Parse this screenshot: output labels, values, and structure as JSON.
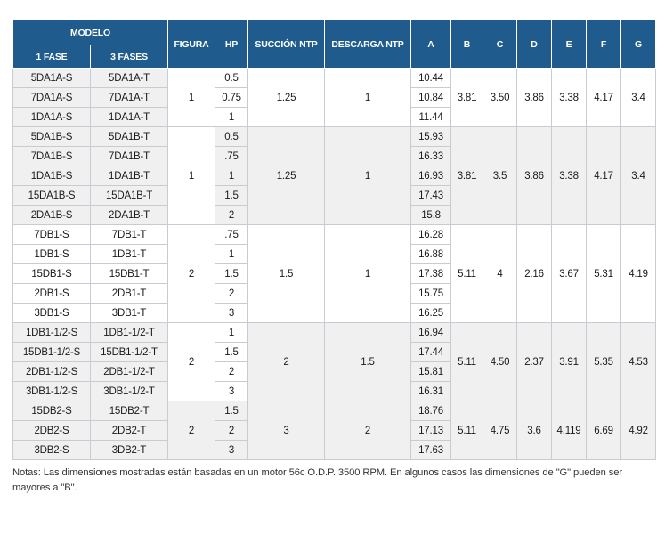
{
  "headers": {
    "modelo": "MODELO",
    "fase1": "1 FASE",
    "fase3": "3 FASES",
    "figura": "FIGURA",
    "hp": "HP",
    "succion": "SUCCIÓN NTP",
    "descarga": "DESCARGA NTP",
    "a": "A",
    "b": "B",
    "c": "C",
    "d": "D",
    "e": "E",
    "f": "F",
    "g": "G"
  },
  "groups": [
    {
      "figura": "1",
      "succion": "1.25",
      "descarga": "1",
      "b": "3.81",
      "c": "3.50",
      "d": "3.86",
      "e": "3.38",
      "f": "4.17",
      "g": "3.4",
      "rows": [
        {
          "f1": "5DA1A-S",
          "f3": "5DA1A-T",
          "hp": "0.5",
          "a": "10.44"
        },
        {
          "f1": "7DA1A-S",
          "f3": "7DA1A-T",
          "hp": "0.75",
          "a": "10.84"
        },
        {
          "f1": "1DA1A-S",
          "f3": "1DA1A-T",
          "hp": "1",
          "a": "11.44"
        }
      ]
    },
    {
      "figura": "1",
      "succion": "1.25",
      "descarga": "1",
      "b": "3.81",
      "c": "3.5",
      "d": "3.86",
      "e": "3.38",
      "f": "4.17",
      "g": "3.4",
      "rows": [
        {
          "f1": "5DA1B-S",
          "f3": "5DA1B-T",
          "hp": "0.5",
          "a": "15.93"
        },
        {
          "f1": "7DA1B-S",
          "f3": "7DA1B-T",
          "hp": ".75",
          "a": "16.33"
        },
        {
          "f1": "1DA1B-S",
          "f3": "1DA1B-T",
          "hp": "1",
          "a": "16.93"
        },
        {
          "f1": "15DA1B-S",
          "f3": "15DA1B-T",
          "hp": "1.5",
          "a": "17.43"
        },
        {
          "f1": "2DA1B-S",
          "f3": "2DA1B-T",
          "hp": "2",
          "a": "15.8"
        }
      ]
    },
    {
      "figura": "2",
      "succion": "1.5",
      "descarga": "1",
      "b": "5.11",
      "c": "4",
      "d": "2.16",
      "e": "3.67",
      "f": "5.31",
      "g": "4.19",
      "rows": [
        {
          "f1": "7DB1-S",
          "f3": "7DB1-T",
          "hp": ".75",
          "a": "16.28"
        },
        {
          "f1": "1DB1-S",
          "f3": "1DB1-T",
          "hp": "1",
          "a": "16.88"
        },
        {
          "f1": "15DB1-S",
          "f3": "15DB1-T",
          "hp": "1.5",
          "a": "17.38"
        },
        {
          "f1": "2DB1-S",
          "f3": "2DB1-T",
          "hp": "2",
          "a": "15.75"
        },
        {
          "f1": "3DB1-S",
          "f3": "3DB1-T",
          "hp": "3",
          "a": "16.25"
        }
      ]
    },
    {
      "figura": "2",
      "succion": "2",
      "descarga": "1.5",
      "b": "5.11",
      "c": "4.50",
      "d": "2.37",
      "e": "3.91",
      "f": "5.35",
      "g": "4.53",
      "rows": [
        {
          "f1": "1DB1-1/2-S",
          "f3": "1DB1-1/2-T",
          "hp": "1",
          "a": "16.94"
        },
        {
          "f1": "15DB1-1/2-S",
          "f3": "15DB1-1/2-T",
          "hp": "1.5",
          "a": "17.44"
        },
        {
          "f1": "2DB1-1/2-S",
          "f3": "2DB1-1/2-T",
          "hp": "2",
          "a": "15.81"
        },
        {
          "f1": "3DB1-1/2-S",
          "f3": "3DB1-1/2-T",
          "hp": "3",
          "a": "16.31"
        }
      ]
    },
    {
      "figura": "2",
      "succion": "3",
      "descarga": "2",
      "b": "5.11",
      "c": "4.75",
      "d": "3.6",
      "e": "4.119",
      "f": "6.69",
      "g": "4.92",
      "rows": [
        {
          "f1": "15DB2-S",
          "f3": "15DB2-T",
          "hp": "1.5",
          "a": "18.76"
        },
        {
          "f1": "2DB2-S",
          "f3": "2DB2-T",
          "hp": "2",
          "a": "17.13"
        },
        {
          "f1": "3DB2-S",
          "f3": "3DB2-T",
          "hp": "3",
          "a": "17.63"
        }
      ]
    }
  ],
  "note": "Notas: Las dimensiones mostradas están basadas en un motor 56c O.D.P. 3500 RPM. En algunos casos las dimensiones de \"G\" pueden ser mayores a \"B\"."
}
